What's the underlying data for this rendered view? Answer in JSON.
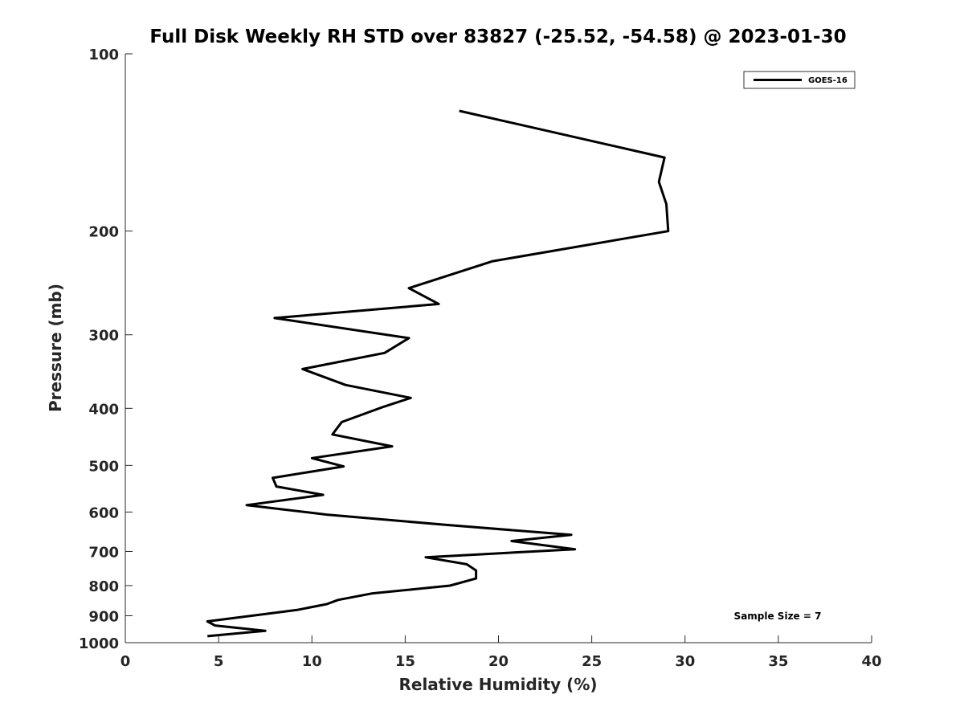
{
  "chart_data": {
    "type": "line",
    "title": "Full Disk Weekly RH STD over 83827 (-25.52, -54.58) @ 2023-01-30",
    "xlabel": "Relative Humidity (%)",
    "ylabel": "Pressure (mb)",
    "xlim": [
      0,
      40
    ],
    "ylim": [
      100,
      1000
    ],
    "y_scale": "log",
    "y_reversed": true,
    "grid": false,
    "x_ticks": [
      0,
      5,
      10,
      15,
      20,
      25,
      30,
      35,
      40
    ],
    "x_tick_labels": [
      "0",
      "5",
      "10",
      "15",
      "20",
      "25",
      "30",
      "35",
      "40"
    ],
    "y_ticks": [
      100,
      200,
      300,
      400,
      500,
      600,
      700,
      800,
      900,
      1000
    ],
    "y_tick_labels": [
      "100",
      "200",
      "300",
      "400",
      "500",
      "600",
      "700",
      "800",
      "900",
      "1000"
    ],
    "legend": {
      "position": "top-right",
      "entries": [
        "GOES-16"
      ]
    },
    "annotation": "Sample Size = 7",
    "series": [
      {
        "name": "GOES-16",
        "color": "#000000",
        "points": [
          [
            17.9,
            125
          ],
          [
            28.9,
            150
          ],
          [
            28.6,
            165
          ],
          [
            29.0,
            180
          ],
          [
            29.1,
            200
          ],
          [
            19.7,
            225
          ],
          [
            15.2,
            250
          ],
          [
            16.8,
            266
          ],
          [
            8.0,
            281
          ],
          [
            15.2,
            304
          ],
          [
            13.9,
            322
          ],
          [
            9.5,
            343
          ],
          [
            11.8,
            365
          ],
          [
            15.3,
            384
          ],
          [
            13.8,
            398
          ],
          [
            11.6,
            422
          ],
          [
            11.1,
            443
          ],
          [
            14.3,
            464
          ],
          [
            10.0,
            486
          ],
          [
            11.7,
            502
          ],
          [
            7.9,
            525
          ],
          [
            8.1,
            543
          ],
          [
            10.6,
            561
          ],
          [
            6.5,
            584
          ],
          [
            10.8,
            606
          ],
          [
            17.2,
            631
          ],
          [
            23.9,
            656
          ],
          [
            20.7,
            672
          ],
          [
            24.1,
            694
          ],
          [
            16.1,
            716
          ],
          [
            18.3,
            736
          ],
          [
            18.8,
            754
          ],
          [
            18.8,
            778
          ],
          [
            17.4,
            800
          ],
          [
            13.2,
            825
          ],
          [
            11.4,
            846
          ],
          [
            10.8,
            860
          ],
          [
            9.2,
            880
          ],
          [
            4.4,
            920
          ],
          [
            4.8,
            935
          ],
          [
            7.5,
            955
          ],
          [
            4.4,
            975
          ]
        ]
      }
    ]
  }
}
